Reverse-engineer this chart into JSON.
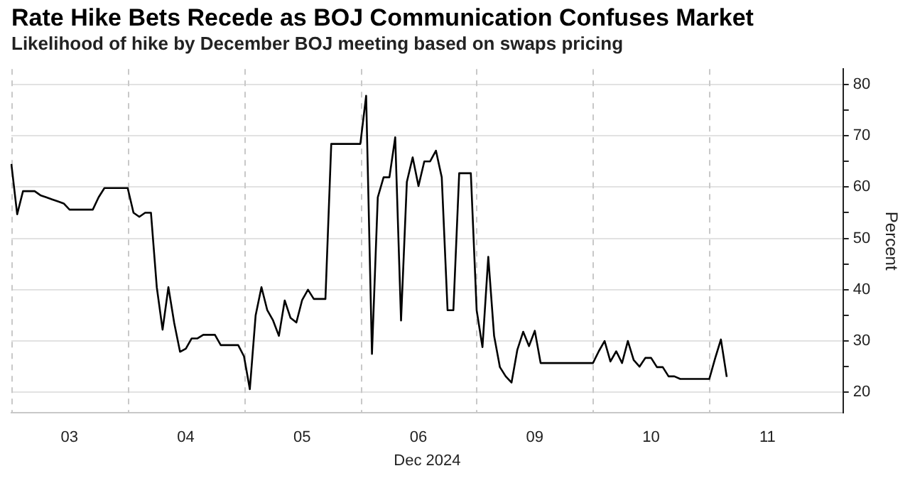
{
  "chart_data": {
    "type": "line",
    "title": "Rate Hike Bets Recede as BOJ Communication Confuses Market",
    "subtitle": "Likelihood of hike by December BOJ meeting based on swaps pricing",
    "xlabel": "Dec 2024",
    "ylabel": "Percent",
    "grid": true,
    "categories": [
      null,
      null,
      null,
      null,
      null,
      null,
      null,
      null,
      null,
      null,
      "03",
      null,
      null,
      null,
      null,
      null,
      null,
      null,
      null,
      null,
      null,
      null,
      null,
      null,
      null,
      null,
      null,
      null,
      null,
      null,
      "04",
      null,
      null,
      null,
      null,
      null,
      null,
      null,
      null,
      null,
      null,
      null,
      null,
      null,
      null,
      null,
      null,
      null,
      null,
      null,
      "05",
      null,
      null,
      null,
      null,
      null,
      null,
      null,
      null,
      null,
      null,
      null,
      null,
      null,
      null,
      null,
      null,
      null,
      null,
      null,
      "06",
      null,
      null,
      null,
      null,
      null,
      null,
      null,
      null,
      null,
      null,
      null,
      null,
      null,
      null,
      null,
      null,
      null,
      null,
      null,
      "09",
      null,
      null,
      null,
      null,
      null,
      null,
      null,
      null,
      null,
      null,
      null,
      null,
      null,
      null,
      null,
      null,
      null,
      null,
      null,
      "10",
      null,
      null,
      null,
      null,
      null,
      null,
      null,
      null,
      null,
      null,
      null,
      null,
      null,
      null,
      null,
      null,
      null,
      null,
      null,
      "11",
      null,
      null,
      null,
      null,
      null,
      null,
      null,
      null,
      null,
      null,
      null,
      null,
      null
    ],
    "ylim": [
      16,
      83
    ],
    "yticks": [
      20,
      {
        "value": 25,
        "label": null
      },
      30,
      {
        "value": 35,
        "label": null
      },
      40,
      {
        "value": 45,
        "label": null
      },
      50,
      {
        "value": 55,
        "label": null
      },
      60,
      {
        "value": 65,
        "label": null
      },
      70,
      {
        "value": 75,
        "label": null
      },
      80
    ],
    "series": [
      {
        "color": "#000000",
        "values": [
          64.5,
          54.7,
          59.2,
          59.2,
          59.2,
          58.4,
          58,
          57.6,
          57.2,
          56.8,
          55.6,
          55.6,
          55.6,
          55.6,
          55.6,
          58,
          59.8,
          59.8,
          59.8,
          59.8,
          59.8,
          55,
          54.2,
          55,
          55,
          40.5,
          32.2,
          40.5,
          33.5,
          27.9,
          28.5,
          30.5,
          30.5,
          31.2,
          31.2,
          31.2,
          29.2,
          29.2,
          29.2,
          29.2,
          27,
          20.6,
          35,
          40.5,
          36,
          34,
          31,
          37.9,
          34.5,
          33.6,
          38,
          40,
          38.2,
          38.2,
          38.2,
          68.4,
          68.4,
          68.4,
          68.4,
          68.4,
          68.4,
          77.8,
          27.5,
          58,
          61.9,
          61.9,
          69.7,
          34,
          61,
          65.8,
          60.2,
          65,
          65,
          67.1,
          61.9,
          36,
          36,
          62.7,
          62.7,
          62.7,
          36,
          28.8,
          46.4,
          31,
          24.9,
          23.1,
          21.9,
          28.3,
          31.8,
          29,
          32,
          25.7,
          25.7,
          25.7,
          25.7,
          25.7,
          25.7,
          25.7,
          25.7,
          25.7,
          25.7,
          28,
          30,
          26,
          28,
          25.7,
          30,
          26.3,
          25,
          26.7,
          26.7,
          24.9,
          24.9,
          23.1,
          23.1,
          22.6,
          22.6,
          22.6,
          22.6,
          22.6,
          22.6,
          26.6,
          30.3,
          23,
          null,
          null,
          null,
          null,
          null,
          null,
          null,
          null,
          null,
          null,
          null,
          null,
          null,
          null,
          null,
          null,
          null,
          null,
          null,
          null
        ]
      }
    ]
  }
}
